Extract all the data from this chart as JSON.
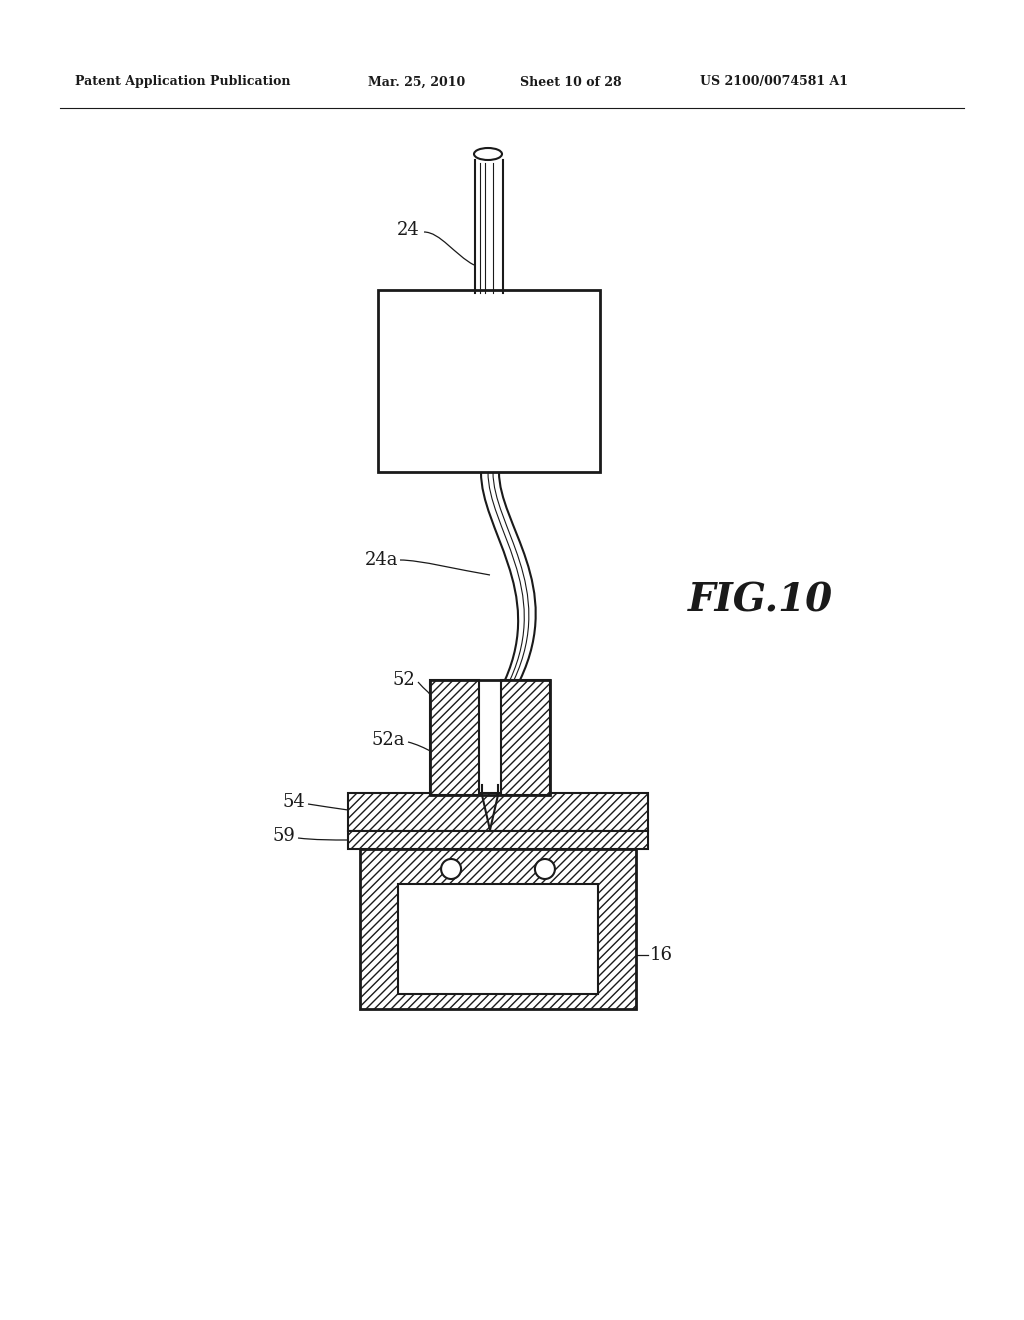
{
  "bg_color": "#ffffff",
  "line_color": "#1a1a1a",
  "header_text1": "Patent Application Publication",
  "header_text2": "Mar. 25, 2010",
  "header_text3": "Sheet 10 of 28",
  "header_text4": "US 2100/0074581 A1",
  "fig_label": "FIG.10",
  "lw_main": 1.5,
  "lw_thick": 2.0,
  "lw_thin": 0.8
}
